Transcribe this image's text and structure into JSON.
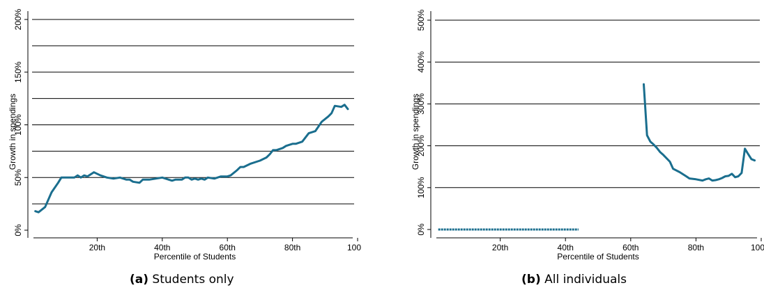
{
  "colors": {
    "line": "#1a6e8e",
    "grid": "#000000",
    "background": "#ffffff"
  },
  "captions": [
    {
      "letter": "(a)",
      "text": "Students only"
    },
    {
      "letter": "(b)",
      "text": "All individuals"
    }
  ],
  "chart_data": [
    {
      "type": "line",
      "title": "",
      "xlabel": "Percentile of Students",
      "ylabel": "Growth in spendings",
      "xlim": [
        0,
        100
      ],
      "ylim": [
        0,
        200
      ],
      "xticks": [
        20,
        40,
        60,
        80,
        100
      ],
      "xtick_labels": [
        "20th",
        "40th",
        "60th",
        "80th",
        "100th"
      ],
      "yticks": [
        0,
        50,
        100,
        150,
        200
      ],
      "ytick_labels": [
        "0%",
        "50%",
        "100%",
        "150%",
        "200%"
      ],
      "gridlines_y": [
        25,
        50,
        75,
        100,
        125,
        150,
        175,
        200
      ],
      "series": [
        {
          "x": [
            1,
            2,
            4,
            6,
            8,
            9,
            11,
            13,
            14,
            15,
            16,
            17,
            19,
            21,
            23,
            25,
            27,
            29,
            30,
            31,
            33,
            34,
            36,
            38,
            40,
            42,
            43,
            44,
            46,
            47,
            48,
            49,
            50,
            51,
            52,
            53,
            54,
            56,
            58,
            60,
            61,
            63,
            64,
            65,
            67,
            69,
            70,
            72,
            73,
            74,
            75,
            77,
            78,
            80,
            81,
            83,
            85,
            87,
            89,
            91,
            92,
            93,
            95,
            96,
            97
          ],
          "y": [
            18,
            17,
            22,
            36,
            45,
            50,
            50,
            50,
            52,
            50,
            52,
            51,
            55,
            52,
            50,
            49,
            50,
            48,
            48,
            46,
            45,
            48,
            48,
            49,
            50,
            48,
            47,
            48,
            48,
            50,
            50,
            48,
            49,
            48,
            49,
            48,
            50,
            49,
            51,
            51,
            52,
            57,
            60,
            60,
            63,
            65,
            66,
            69,
            72,
            76,
            76,
            78,
            80,
            82,
            82,
            84,
            92,
            94,
            103,
            108,
            111,
            118,
            117,
            119,
            115
          ]
        }
      ]
    },
    {
      "type": "line",
      "title": "",
      "xlabel": "Percentile of Students",
      "ylabel": "Growth in spendings",
      "xlim": [
        0,
        100
      ],
      "ylim": [
        0,
        500
      ],
      "xticks": [
        20,
        40,
        60,
        80,
        100
      ],
      "xtick_labels": [
        "20th",
        "40th",
        "60th",
        "80th",
        "100th"
      ],
      "yticks": [
        0,
        100,
        200,
        300,
        400,
        500
      ],
      "ytick_labels": [
        "0%",
        "100%",
        "200%",
        "300%",
        "400%",
        "500%"
      ],
      "gridlines_y": [
        100,
        200,
        300,
        400,
        500
      ],
      "series": [
        {
          "x": [
            1,
            44
          ],
          "y": [
            0,
            0
          ],
          "marker": "tiny-dots"
        },
        {
          "x": [
            64,
            65,
            66,
            67,
            68,
            69,
            70,
            72,
            73,
            75,
            77,
            78,
            80,
            82,
            83,
            84,
            85,
            86,
            87,
            88,
            89,
            90,
            91,
            92,
            93,
            94,
            95,
            96,
            97,
            98
          ],
          "y": [
            347,
            225,
            210,
            203,
            195,
            185,
            178,
            162,
            145,
            137,
            127,
            122,
            120,
            117,
            120,
            122,
            117,
            118,
            120,
            123,
            127,
            128,
            133,
            125,
            127,
            135,
            193,
            180,
            168,
            165
          ]
        }
      ]
    }
  ]
}
